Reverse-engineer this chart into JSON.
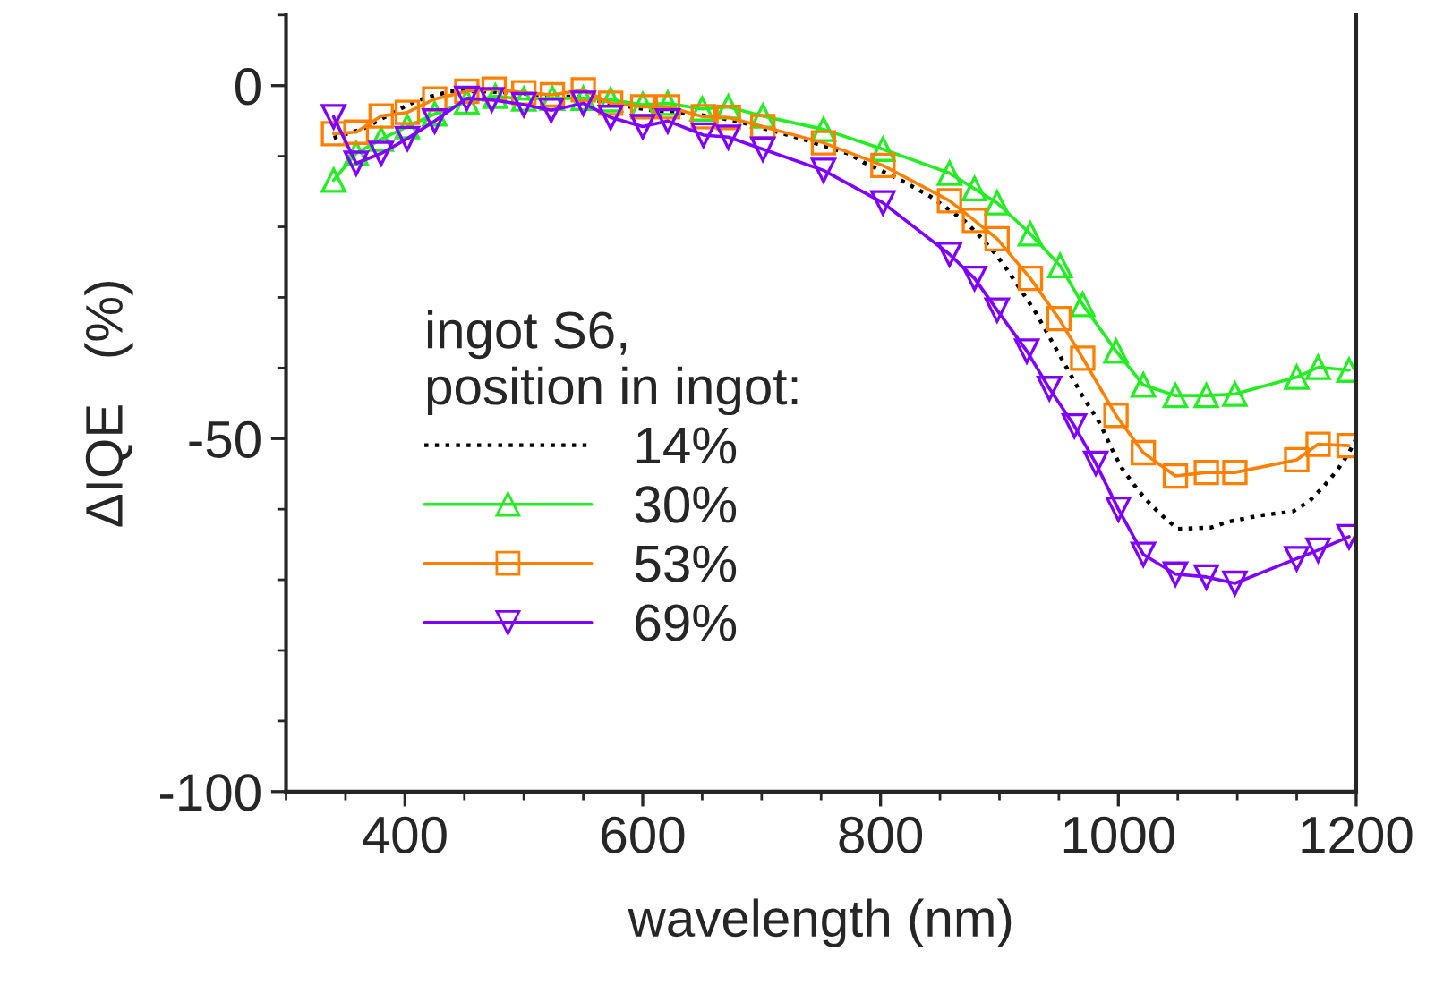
{
  "chart_data": {
    "type": "line",
    "xlabel": "wavelength (nm)",
    "ylabel": "ΔIQE   (%)",
    "legend_title": "ingot S6,\nposition in ingot:",
    "legend": "center left",
    "xlim": [
      300,
      1200
    ],
    "ylim": [
      -100,
      10
    ],
    "xticks": [
      400,
      600,
      800,
      1000,
      1200
    ],
    "yticks": [
      -100,
      -50,
      0
    ],
    "grid": false,
    "series": [
      {
        "name": "14%",
        "color": "#000000",
        "marker": "none",
        "line_style": "dotted",
        "x": [
          340,
          365,
          388,
          410,
          438,
          466,
          492,
          522,
          548,
          578,
          608,
          633,
          663,
          688,
          731,
          774,
          786,
          814,
          842,
          871,
          885,
          897,
          907,
          930,
          950,
          970,
          985,
          996,
          1003,
          1013,
          1023,
          1036,
          1050,
          1078,
          1092,
          1119,
          1147,
          1161,
          1173,
          1184,
          1194,
          1200
        ],
        "values": [
          -7.4,
          -6.1,
          -4,
          -2.1,
          -0.8,
          -0.8,
          -1,
          -1.5,
          -1.6,
          -2.7,
          -3.5,
          -3.8,
          -4.5,
          -5.4,
          -7.4,
          -9.7,
          -10.9,
          -13.1,
          -15.7,
          -19.2,
          -21.6,
          -23.9,
          -26.2,
          -32,
          -38,
          -44,
          -48,
          -52,
          -54.2,
          -56.5,
          -58.6,
          -60.8,
          -62.8,
          -62.6,
          -61.8,
          -60.9,
          -60.3,
          -58.8,
          -56.7,
          -54.5,
          -52,
          -50
        ]
      },
      {
        "name": "30%",
        "color": "#22ee22",
        "marker": "triangle",
        "line_style": "solid",
        "x": [
          340,
          359,
          380,
          402,
          425,
          452,
          476,
          500,
          524,
          550,
          573,
          600,
          621,
          650,
          672,
          701,
          752,
          802,
          858,
          879,
          898,
          926,
          951,
          970,
          998,
          1021,
          1048,
          1074,
          1098,
          1150,
          1168,
          1194
        ],
        "values": [
          -13.4,
          -9.6,
          -7.6,
          -5.8,
          -4,
          -2.3,
          -1.5,
          -1.9,
          -1.8,
          -1.8,
          -2,
          -2.7,
          -2.5,
          -3.3,
          -3,
          -4.3,
          -6.2,
          -9,
          -12.4,
          -14.6,
          -16.6,
          -21,
          -25.5,
          -31,
          -37.6,
          -42.4,
          -43.9,
          -43.9,
          -43.7,
          -41.3,
          -39.9,
          -40.3
        ]
      },
      {
        "name": "53%",
        "color": "#ff8000",
        "marker": "square",
        "line_style": "solid",
        "x": [
          340,
          359,
          380,
          402,
          425,
          452,
          475,
          500,
          524,
          550,
          573,
          600,
          621,
          651,
          672,
          701,
          752,
          802,
          858,
          879,
          898,
          926,
          950,
          970,
          998,
          1021,
          1048,
          1074,
          1098,
          1150,
          1168,
          1194
        ],
        "values": [
          -6.8,
          -6.6,
          -4.3,
          -3.8,
          -1.9,
          -0.8,
          -0.5,
          -1,
          -1.3,
          -0.6,
          -2.5,
          -3,
          -3,
          -4.4,
          -4.5,
          -5.8,
          -8.1,
          -11.3,
          -16.3,
          -19.1,
          -21.7,
          -27.3,
          -33,
          -38.6,
          -46.7,
          -52,
          -55.3,
          -54.8,
          -54.8,
          -53,
          -50.8,
          -51
        ]
      },
      {
        "name": "69%",
        "color": "#8000ff",
        "marker": "triangle-down",
        "line_style": "solid",
        "x": [
          340,
          359,
          380,
          402,
          425,
          452,
          473,
          500,
          523,
          550,
          573,
          600,
          621,
          651,
          672,
          701,
          752,
          802,
          858,
          879,
          898,
          923,
          942,
          963,
          981,
          1000,
          1021,
          1048,
          1074,
          1098,
          1150,
          1168,
          1194
        ],
        "values": [
          -4.4,
          -11,
          -9.6,
          -7.5,
          -5,
          -1.8,
          -2,
          -2.7,
          -3.5,
          -2.5,
          -4.5,
          -5.8,
          -5,
          -7,
          -7.3,
          -9,
          -12,
          -16.6,
          -23.9,
          -27.3,
          -31.8,
          -37.6,
          -42.9,
          -48.2,
          -53.5,
          -60,
          -66.4,
          -69.2,
          -69.6,
          -70.5,
          -67,
          -65.8,
          -63.9
        ]
      }
    ]
  }
}
